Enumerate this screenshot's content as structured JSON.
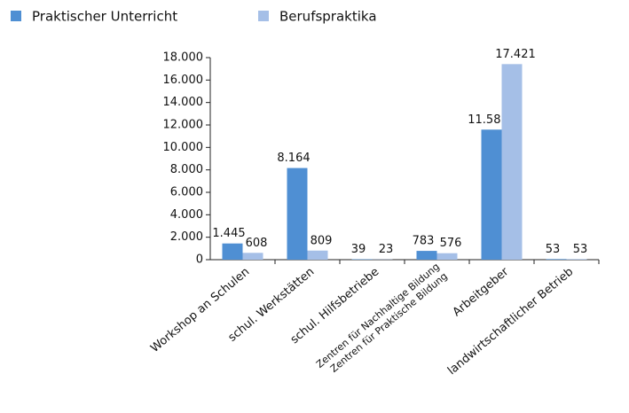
{
  "chart_data": {
    "type": "bar",
    "categories": [
      "Workshop an Schulen",
      "schul. Werkstätten",
      "schul. Hilfsbetriebe",
      [
        "Zentren für Nachhaltige Bildung",
        "Zentren für Praktische Bildung"
      ],
      "Arbeitgeber",
      "landwirtschaftlicher Betrieb"
    ],
    "series": [
      {
        "name": "Praktischer Unterricht",
        "color": "#4f8fd3",
        "values": [
          1445,
          8164,
          39,
          783,
          11585,
          53
        ],
        "value_labels": [
          "1.445",
          "8.164",
          "39",
          "783",
          "11.585",
          "53"
        ]
      },
      {
        "name": "Berufspraktika",
        "color": "#a5bfe7",
        "values": [
          608,
          809,
          23,
          576,
          17421,
          53
        ],
        "value_labels": [
          "608",
          "809",
          "23",
          "576",
          "17.421",
          "53"
        ]
      }
    ],
    "ylim": [
      0,
      18000
    ],
    "yticks": [
      0,
      {
        "value": 2000,
        "label": "2.000"
      },
      {
        "value": 4000,
        "label": "4.000"
      },
      {
        "value": 6000,
        "label": "6.000"
      },
      {
        "value": 8000,
        "label": "8.000"
      },
      {
        "value": 10000,
        "label": "10.000"
      },
      {
        "value": 12000,
        "label": "12.000"
      },
      {
        "value": 14000,
        "label": "14.000"
      },
      {
        "value": 16000,
        "label": "16.000"
      },
      {
        "value": 18000,
        "label": "18.000"
      }
    ],
    "legend": "top"
  }
}
